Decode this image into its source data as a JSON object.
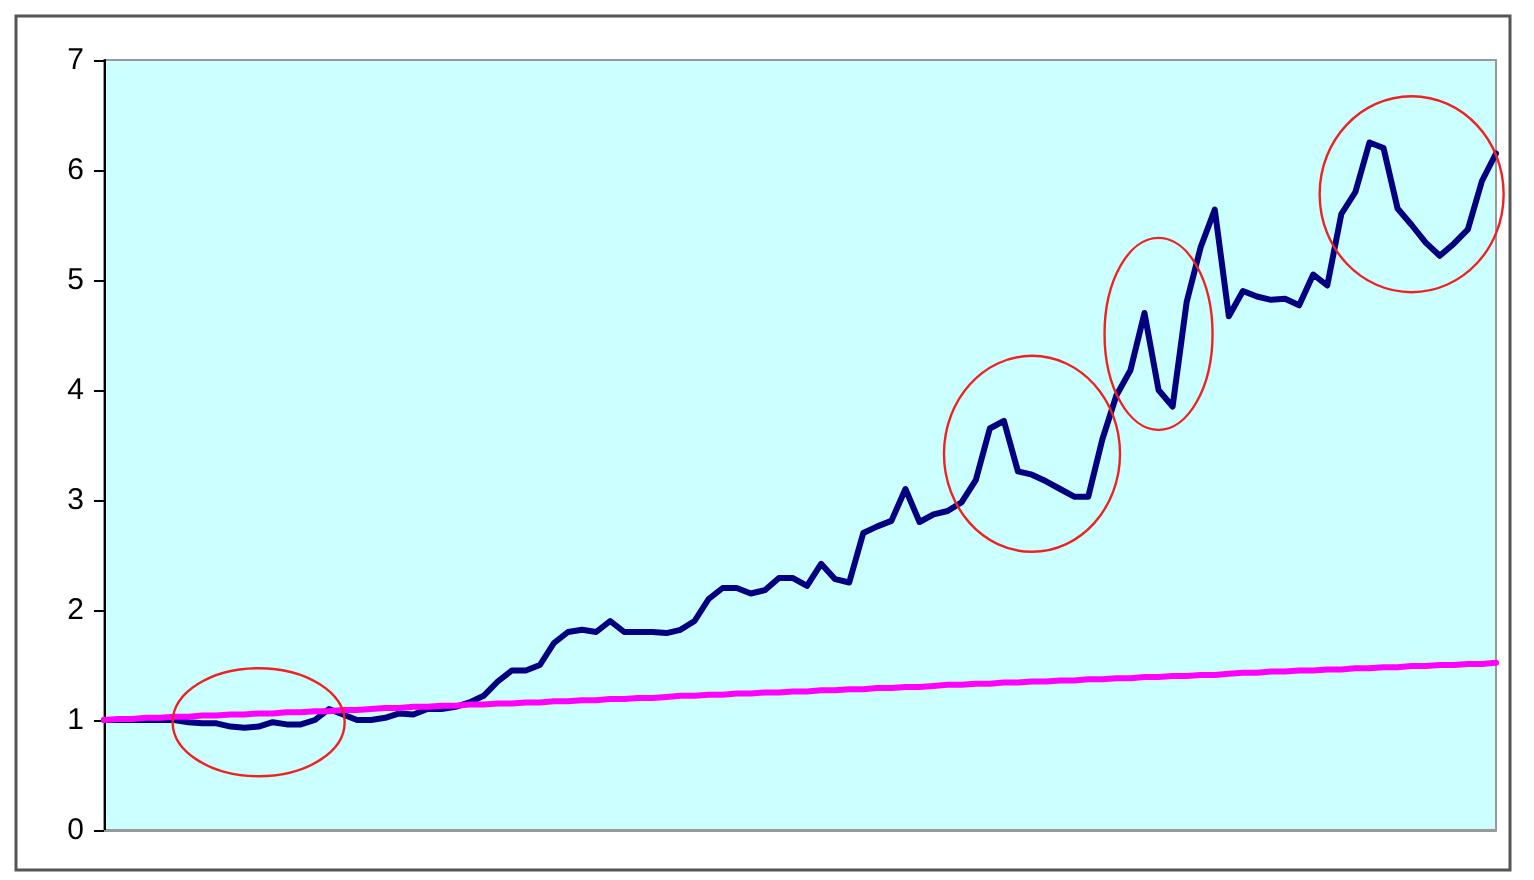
{
  "chart_data": {
    "type": "line",
    "categories": [
      null,
      null,
      null,
      null,
      null,
      null,
      null,
      null,
      null,
      null,
      null,
      null,
      null,
      null,
      null,
      null,
      null,
      null,
      null,
      null,
      null,
      null,
      null,
      null,
      null,
      null,
      null,
      null,
      null,
      null,
      null,
      null,
      null,
      null,
      null,
      null,
      null,
      null,
      null,
      null,
      null,
      null,
      null,
      null,
      null,
      null,
      null,
      null,
      null,
      null,
      null,
      null,
      null,
      null,
      null,
      null,
      null,
      null,
      null,
      null,
      null,
      null,
      null,
      null,
      null,
      null,
      null,
      null,
      null,
      null,
      null,
      null,
      null,
      null,
      null,
      null,
      null,
      null,
      null,
      null,
      null,
      null,
      null,
      null,
      null,
      null,
      null,
      null,
      null,
      null,
      null,
      null,
      null,
      null,
      null,
      null,
      null,
      null,
      null,
      null
    ],
    "series": [
      {
        "color": "#000080",
        "values": [
          1.0,
          1.0,
          1.0,
          1.0,
          1.0,
          1.0,
          0.98,
          0.97,
          0.97,
          0.94,
          0.93,
          0.94,
          0.98,
          0.96,
          0.96,
          1.0,
          1.1,
          1.05,
          1.0,
          1.0,
          1.02,
          1.06,
          1.05,
          1.1,
          1.1,
          1.12,
          1.16,
          1.22,
          1.35,
          1.45,
          1.45,
          1.5,
          1.7,
          1.8,
          1.82,
          1.8,
          1.9,
          1.8,
          1.8,
          1.8,
          1.79,
          1.82,
          1.9,
          2.1,
          2.2,
          2.2,
          2.15,
          2.18,
          2.29,
          2.29,
          2.22,
          2.42,
          2.28,
          2.25,
          2.7,
          2.76,
          2.81,
          3.1,
          2.8,
          2.87,
          2.9,
          2.98,
          3.18,
          3.65,
          3.72,
          3.26,
          3.23,
          3.17,
          3.1,
          3.03,
          3.03,
          3.55,
          3.95,
          4.18,
          4.7,
          4.0,
          3.85,
          4.8,
          5.3,
          5.64,
          4.67,
          4.9,
          4.85,
          4.82,
          4.83,
          4.77,
          5.05,
          4.95,
          5.6,
          5.8,
          6.25,
          6.2,
          5.65,
          5.5,
          5.34,
          5.22,
          5.33,
          5.46,
          5.9,
          6.15
        ]
      },
      {
        "color": "#ff00ff",
        "values": [
          1.0,
          1.01,
          1.01,
          1.02,
          1.02,
          1.03,
          1.03,
          1.04,
          1.04,
          1.05,
          1.05,
          1.06,
          1.06,
          1.07,
          1.07,
          1.08,
          1.08,
          1.09,
          1.09,
          1.1,
          1.11,
          1.11,
          1.12,
          1.12,
          1.13,
          1.13,
          1.14,
          1.14,
          1.15,
          1.15,
          1.16,
          1.16,
          1.17,
          1.17,
          1.18,
          1.18,
          1.19,
          1.19,
          1.2,
          1.2,
          1.21,
          1.22,
          1.22,
          1.23,
          1.23,
          1.24,
          1.24,
          1.25,
          1.25,
          1.26,
          1.26,
          1.27,
          1.27,
          1.28,
          1.28,
          1.29,
          1.29,
          1.3,
          1.3,
          1.31,
          1.32,
          1.32,
          1.33,
          1.33,
          1.34,
          1.34,
          1.35,
          1.35,
          1.36,
          1.36,
          1.37,
          1.37,
          1.38,
          1.38,
          1.39,
          1.39,
          1.4,
          1.4,
          1.41,
          1.41,
          1.42,
          1.43,
          1.43,
          1.44,
          1.44,
          1.45,
          1.45,
          1.46,
          1.46,
          1.47,
          1.47,
          1.48,
          1.48,
          1.49,
          1.49,
          1.5,
          1.5,
          1.51,
          1.51,
          1.52
        ]
      }
    ],
    "ylim": [
      0,
      7
    ],
    "yticks": [
      0,
      1,
      2,
      3,
      4,
      5,
      6,
      7
    ],
    "grid": false,
    "tick_labels": "y",
    "line_style": "solid"
  }
}
